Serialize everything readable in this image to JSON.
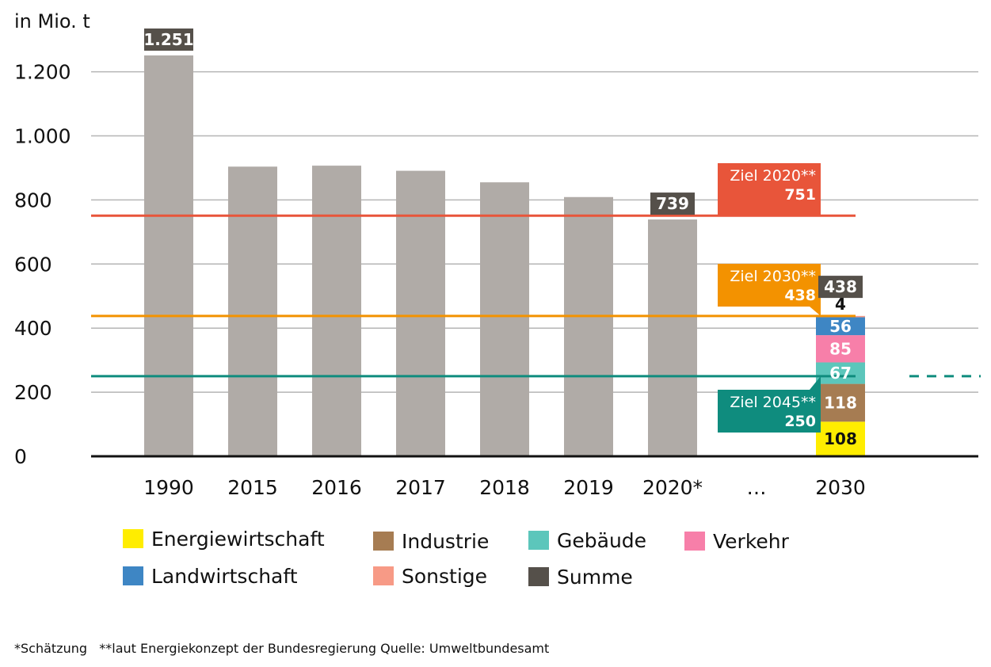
{
  "chart_data": {
    "type": "bar",
    "ylabel": "in Mio. t",
    "ylim": [
      0,
      1300
    ],
    "yticks": [
      {
        "value": 0,
        "label": "0"
      },
      {
        "value": 200,
        "label": "200"
      },
      {
        "value": 400,
        "label": "400"
      },
      {
        "value": 600,
        "label": "600"
      },
      {
        "value": 800,
        "label": "800"
      },
      {
        "value": 1000,
        "label": "1.000"
      },
      {
        "value": 1200,
        "label": "1.200"
      }
    ],
    "grid": true,
    "categories": [
      "1990",
      "2015",
      "2016",
      "2017",
      "2018",
      "2019",
      "2020*",
      "…",
      "2030"
    ],
    "values": [
      1251,
      904,
      907,
      891,
      855,
      809,
      739,
      null,
      null
    ],
    "value_labels": [
      {
        "category": "1990",
        "label": "1.251"
      },
      {
        "category": "2020*",
        "label": "739"
      },
      {
        "category": "2030",
        "label": "438"
      }
    ],
    "stacked_2030": [
      {
        "name": "Energiewirtschaft",
        "value": 108,
        "label": "108"
      },
      {
        "name": "Industrie",
        "value": 118,
        "label": "118"
      },
      {
        "name": "Gebäude",
        "value": 67,
        "label": "67"
      },
      {
        "name": "Verkehr",
        "value": 85,
        "label": "85"
      },
      {
        "name": "Landwirtschaft",
        "value": 56,
        "label": "56"
      },
      {
        "name": "Sonstige",
        "value": 4,
        "label": "4"
      }
    ],
    "targets": [
      {
        "text": "Ziel 2020**",
        "value": 751,
        "label": "751",
        "color": "#e8553a"
      },
      {
        "text": "Ziel 2030**",
        "value": 438,
        "label": "438",
        "color": "#f39200"
      },
      {
        "text": "Ziel 2045**",
        "value": 250,
        "label": "250",
        "color": "#0f8c7e"
      }
    ],
    "legend": [
      {
        "name": "Energiewirtschaft",
        "color": "#ffed00"
      },
      {
        "name": "Industrie",
        "color": "#a67c52"
      },
      {
        "name": "Gebäude",
        "color": "#5cc6bb"
      },
      {
        "name": "Verkehr",
        "color": "#f77fa9"
      },
      {
        "name": "Landwirtschaft",
        "color": "#3e86c4"
      },
      {
        "name": "Sonstige",
        "color": "#f79a86"
      },
      {
        "name": "Summe",
        "color": "#55504a"
      }
    ],
    "colors": {
      "bar": "#b0aba7",
      "summe": "#55504a",
      "grid": "#b5b5b5",
      "axis": "#111111"
    },
    "footnote": "*Schätzung   **laut Energiekonzept der Bundesregierung Quelle: Umweltbundesamt"
  }
}
